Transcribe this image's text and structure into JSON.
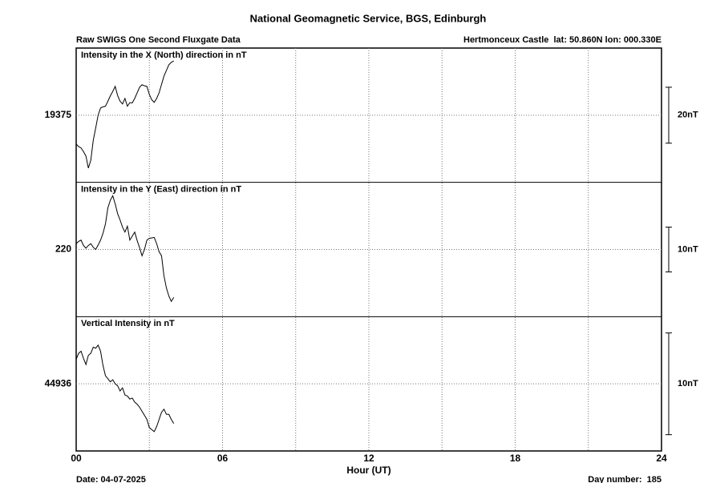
{
  "title": "National Geomagnetic Service, BGS, Edinburgh",
  "subtitle_left": "Raw SWIGS One Second Fluxgate Data",
  "subtitle_right": "Hertmonceux Castle  lat: 50.860N lon: 000.330E",
  "footer_left": "Date: 04-07-2025",
  "footer_right": "Day number:  185",
  "chart_data": {
    "type": "line",
    "x_label": "Hour (UT)",
    "xlim": [
      0,
      24
    ],
    "xticks": [
      {
        "value": 0,
        "label": "00"
      },
      {
        "value": 6,
        "label": "06"
      },
      {
        "value": 12,
        "label": "12"
      },
      {
        "value": 18,
        "label": "18"
      },
      {
        "value": 24,
        "label": "24"
      }
    ],
    "xminor": [
      3,
      9,
      15,
      21
    ],
    "grid": true,
    "color": "#000000",
    "x": [
      0,
      0.1,
      0.2,
      0.3,
      0.4,
      0.5,
      0.6,
      0.7,
      0.8,
      0.9,
      1,
      1.1,
      1.2,
      1.3,
      1.4,
      1.5,
      1.6,
      1.7,
      1.8,
      1.9,
      2,
      2.1,
      2.2,
      2.3,
      2.4,
      2.5,
      2.6,
      2.7,
      2.8,
      2.9,
      3,
      3.1,
      3.2,
      3.3,
      3.4,
      3.5,
      3.6,
      3.7,
      3.8,
      3.9,
      4
    ],
    "panels": [
      {
        "title": "Intensity in the X (North) direction in nT",
        "ylim": [
          19351,
          19399
        ],
        "yticks": [
          19375
        ],
        "scale_bar": {
          "value": 20,
          "label": "20nT"
        },
        "values": [
          19364.7,
          19363.8,
          19363.3,
          19362.0,
          19360.4,
          19356.1,
          19358.9,
          19366,
          19370.4,
          19375,
          19377.6,
          19378,
          19378.2,
          19380,
          19381.9,
          19383.5,
          19385.3,
          19382,
          19380,
          19379,
          19381,
          19378.2,
          19379.5,
          19379.4,
          19381,
          19383,
          19385,
          19385.9,
          19385.5,
          19385.3,
          19382.4,
          19380.5,
          19379.6,
          19381,
          19383,
          19386,
          19389,
          19391,
          19393,
          19393.9,
          19394.4
        ]
      },
      {
        "title": "Intensity in the Y (East) direction in nT",
        "ylim": [
          205,
          235
        ],
        "yticks": [
          220
        ],
        "scale_bar": {
          "value": 10,
          "label": "10nT"
        },
        "values": [
          221.3,
          221.8,
          222.1,
          220.9,
          220.3,
          220.9,
          221.3,
          220.5,
          220.0,
          221.0,
          222.1,
          223.6,
          225.7,
          229.3,
          231.0,
          232.0,
          230.2,
          228.0,
          226.6,
          225.0,
          223.9,
          225.2,
          222.1,
          223.0,
          223.9,
          222.0,
          220.4,
          218.6,
          220.0,
          222.1,
          222.5,
          222.6,
          222.7,
          221.3,
          219.5,
          218.6,
          214.1,
          211.4,
          209.6,
          208.4,
          209.3
        ]
      },
      {
        "title": "Vertical Intensity in nT",
        "ylim": [
          44929.4,
          44942.6
        ],
        "yticks": [
          44936
        ],
        "scale_bar": {
          "value": 10,
          "label": "10nT"
        },
        "values": [
          44938.4,
          44939.0,
          44939.2,
          44938.5,
          44937.9,
          44938.8,
          44939.0,
          44939.6,
          44939.5,
          44939.8,
          44939.2,
          44937.8,
          44936.8,
          44936.5,
          44936.2,
          44936.4,
          44936.0,
          44935.8,
          44935.3,
          44935.6,
          44934.9,
          44934.8,
          44934.5,
          44934.6,
          44934.2,
          44934.0,
          44933.7,
          44933.3,
          44932.9,
          44932.5,
          44931.7,
          44931.5,
          44931.3,
          44931.8,
          44932.5,
          44933.2,
          44933.5,
          44933.0,
          44933.0,
          44932.5,
          44932.1
        ]
      }
    ]
  }
}
